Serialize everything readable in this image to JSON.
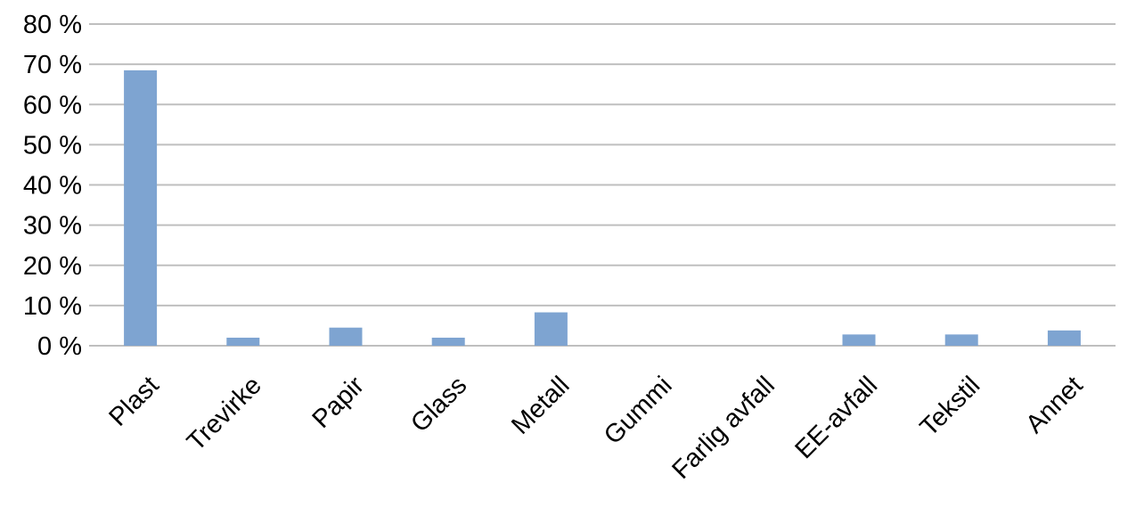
{
  "chart_data": {
    "type": "bar",
    "categories": [
      "Plast",
      "Trevirke",
      "Papir",
      "Glass",
      "Metall",
      "Gummi",
      "Farlig avfall",
      "EE-avfall",
      "Tekstil",
      "Annet"
    ],
    "series": [
      {
        "values": [
          68.5,
          2.0,
          4.5,
          2.0,
          8.3,
          0,
          0,
          2.8,
          2.8,
          3.8
        ]
      }
    ],
    "y_ticks": [
      "0 %",
      "10 %",
      "20 %",
      "30 %",
      "40 %",
      "50 %",
      "60 %",
      "70 %",
      "80 %"
    ],
    "ylim": [
      0,
      80
    ],
    "y_unit": "%",
    "grid": true,
    "legend": "none",
    "title": "",
    "xlabel": "",
    "ylabel": "",
    "x_label_rotation_deg": -45,
    "colors": {
      "bar": "#7ea4d1",
      "grid": "#bfbfbf",
      "text": "#000000"
    }
  }
}
